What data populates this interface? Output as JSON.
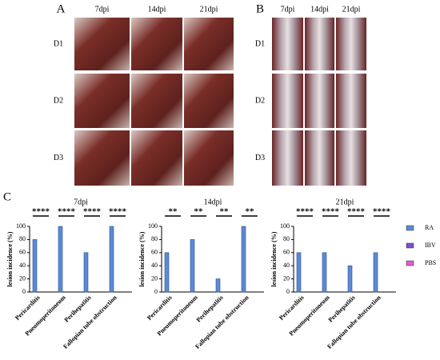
{
  "panels": {
    "a": {
      "label": "A",
      "columns": [
        "7dpi",
        "14dpi",
        "21dpi"
      ],
      "rows": [
        "D1",
        "D2",
        "D3"
      ]
    },
    "b": {
      "label": "B",
      "columns": [
        "7dpi",
        "14dpi",
        "21dpi"
      ],
      "rows": [
        "D1",
        "D2",
        "D3"
      ]
    },
    "c": {
      "label": "C"
    }
  },
  "chart_data": [
    {
      "type": "bar",
      "title": "7dpi",
      "y_label": "lesion incidence (%)",
      "categories": [
        "Pericarditis",
        "Pneumoperitoneum",
        "Perihepatitis",
        "Fallopian tube obstruction"
      ],
      "series": [
        {
          "color": "#5b8ad6",
          "values": [
            80,
            100,
            60,
            100
          ]
        },
        {
          "color": "#7b4fc9",
          "values": [
            0,
            0,
            0,
            0
          ]
        },
        {
          "color": "#e05bd0",
          "values": [
            0,
            0,
            0,
            0
          ]
        }
      ],
      "significance": [
        "****",
        "****",
        "****",
        "****"
      ],
      "ylim": [
        0,
        100
      ],
      "yticks": [
        0,
        20,
        40,
        60,
        80,
        100
      ]
    },
    {
      "type": "bar",
      "title": "14dpi",
      "y_label": "lesion incidence (%)",
      "categories": [
        "Pericarditis",
        "Pneumoperitoneum",
        "Perihepatitis",
        "Fallopian tube obstruction"
      ],
      "series": [
        {
          "color": "#5b8ad6",
          "values": [
            60,
            80,
            20,
            100
          ]
        },
        {
          "color": "#7b4fc9",
          "values": [
            0,
            0,
            0,
            0
          ]
        },
        {
          "color": "#e05bd0",
          "values": [
            0,
            0,
            0,
            0
          ]
        }
      ],
      "significance": [
        "**",
        "**",
        "**",
        "**"
      ],
      "ylim": [
        0,
        100
      ],
      "yticks": [
        0,
        20,
        40,
        60,
        80,
        100
      ]
    },
    {
      "type": "bar",
      "title": "21dpi",
      "y_label": "lesion incidence (%)",
      "categories": [
        "Pericarditis",
        "Pneumoperitoneum",
        "Perihepatitis",
        "Fallopian tube obstruction"
      ],
      "series": [
        {
          "name": "RA",
          "color": "#5b8ad6",
          "values": [
            60,
            60,
            40,
            60
          ]
        },
        {
          "name": "IBV",
          "color": "#7b4fc9",
          "values": [
            0,
            0,
            0,
            0
          ]
        },
        {
          "name": "PBS",
          "color": "#e05bd0",
          "values": [
            0,
            0,
            0,
            0
          ]
        }
      ],
      "significance": [
        "****",
        "****",
        "****",
        "****"
      ],
      "ylim": [
        0,
        100
      ],
      "yticks": [
        0,
        20,
        40,
        60,
        80,
        100
      ]
    }
  ]
}
